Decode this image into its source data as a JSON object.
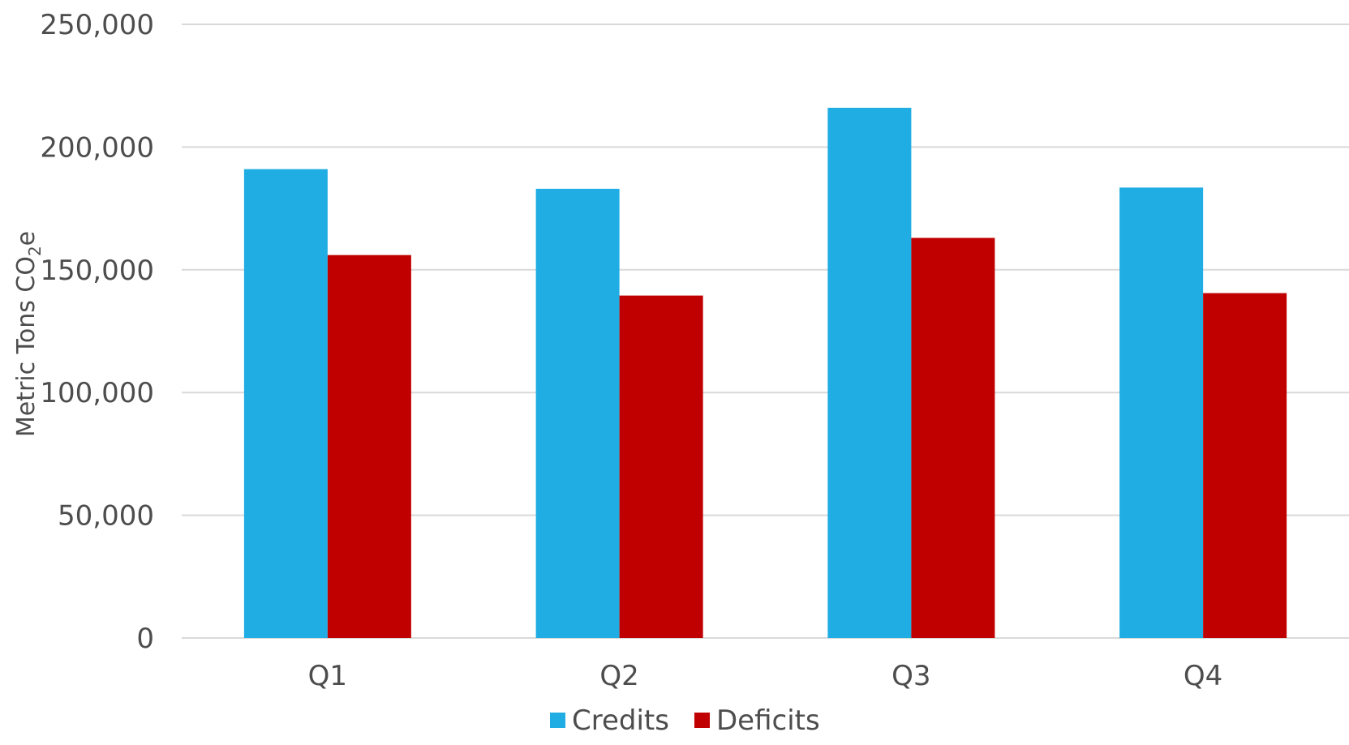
{
  "chart_data": {
    "type": "bar",
    "categories": [
      "Q1",
      "Q2",
      "Q3",
      "Q4"
    ],
    "series": [
      {
        "name": "Credits",
        "color": "#1fade3",
        "values": [
          191000,
          183000,
          216000,
          183500
        ]
      },
      {
        "name": "Deficits",
        "color": "#c00000",
        "values": [
          156000,
          139500,
          163000,
          140500
        ]
      }
    ],
    "ylabel": {
      "main": "Metric Tons CO",
      "sub": "2",
      "tail": "e"
    },
    "ylim": [
      0,
      250000
    ],
    "yticks": [
      0,
      50000,
      100000,
      150000,
      200000,
      250000
    ],
    "ytick_labels": [
      "0",
      "50,000",
      "100,000",
      "150,000",
      "200,000",
      "250,000"
    ],
    "grid": true,
    "legend": "bottom-center"
  }
}
